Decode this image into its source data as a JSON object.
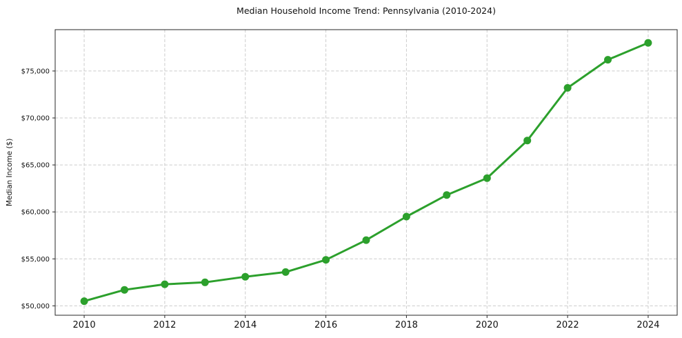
{
  "chart_data": {
    "type": "line",
    "title": "Median Household Income Trend: Pennsylvania (2010-2024)",
    "xlabel": "",
    "ylabel": "Median Income ($)",
    "x": [
      2010,
      2011,
      2012,
      2013,
      2014,
      2015,
      2016,
      2017,
      2018,
      2019,
      2020,
      2021,
      2022,
      2023,
      2024
    ],
    "series": [
      {
        "name": "Median household income",
        "values": [
          50500,
          51700,
          52300,
          52500,
          53100,
          53600,
          54900,
          57000,
          59500,
          61800,
          63600,
          67600,
          73200,
          76200,
          78000
        ]
      }
    ],
    "xlim": [
      2009.28,
      2024.72
    ],
    "ylim": [
      49000,
      79400
    ],
    "xticks": [
      2010,
      2012,
      2014,
      2016,
      2018,
      2020,
      2022,
      2024
    ],
    "xtick_labels": [
      "2010",
      "2012",
      "2014",
      "2016",
      "2018",
      "2020",
      "2022",
      "2024"
    ],
    "yticks": [
      50000,
      55000,
      60000,
      65000,
      70000,
      75000
    ],
    "ytick_labels": [
      "$50,000",
      "$55,000",
      "$60,000",
      "$65,000",
      "$70,000",
      "$75,000"
    ],
    "grid": true,
    "grid_style": "dashed",
    "legend": "none",
    "marker": "circle",
    "colors": {
      "line": "#2ca02c",
      "marker": "#2ca02c",
      "grid": "#cccccc",
      "axis": "#262626",
      "text": "#111111",
      "background": "#ffffff"
    }
  }
}
